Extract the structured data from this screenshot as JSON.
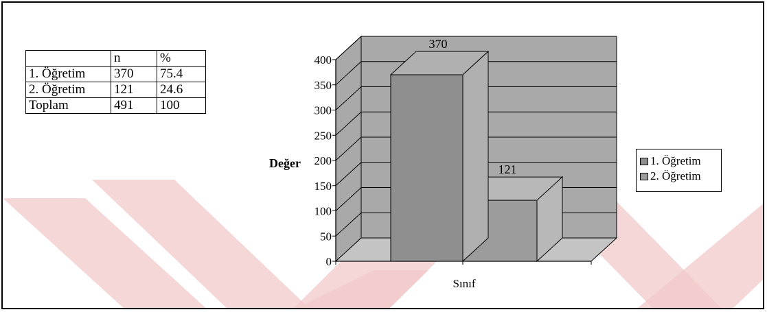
{
  "table": {
    "headers": [
      "",
      "n",
      "%"
    ],
    "rows": [
      [
        "1. Öğretim",
        "370",
        "75.4"
      ],
      [
        "2. Öğretim",
        "121",
        "24.6"
      ],
      [
        "Toplam",
        "491",
        "100"
      ]
    ]
  },
  "chart_data": {
    "type": "bar",
    "style": "3d-column",
    "categories": [
      "1. Öğretim",
      "2. Öğretim"
    ],
    "values": [
      370,
      121
    ],
    "data_labels": [
      "370",
      "121"
    ],
    "xlabel": "Sınıf",
    "ylabel": "Değer",
    "ylim": [
      0,
      400
    ],
    "yticks": [
      0,
      50,
      100,
      150,
      200,
      250,
      300,
      350,
      400
    ],
    "grid": true,
    "legend": {
      "placement": "right",
      "entries": [
        "1. Öğretim",
        "2. Öğretim"
      ]
    }
  },
  "colors": {
    "wall": "#a9a9a9",
    "floor": "#c4c4c4",
    "bar1_front": "#8f8f8f",
    "bar1_side": "#b0b0b0",
    "bar2_front": "#9c9c9c",
    "bar2_side": "#b8b8b8",
    "watermark": "#f2c9c9"
  }
}
